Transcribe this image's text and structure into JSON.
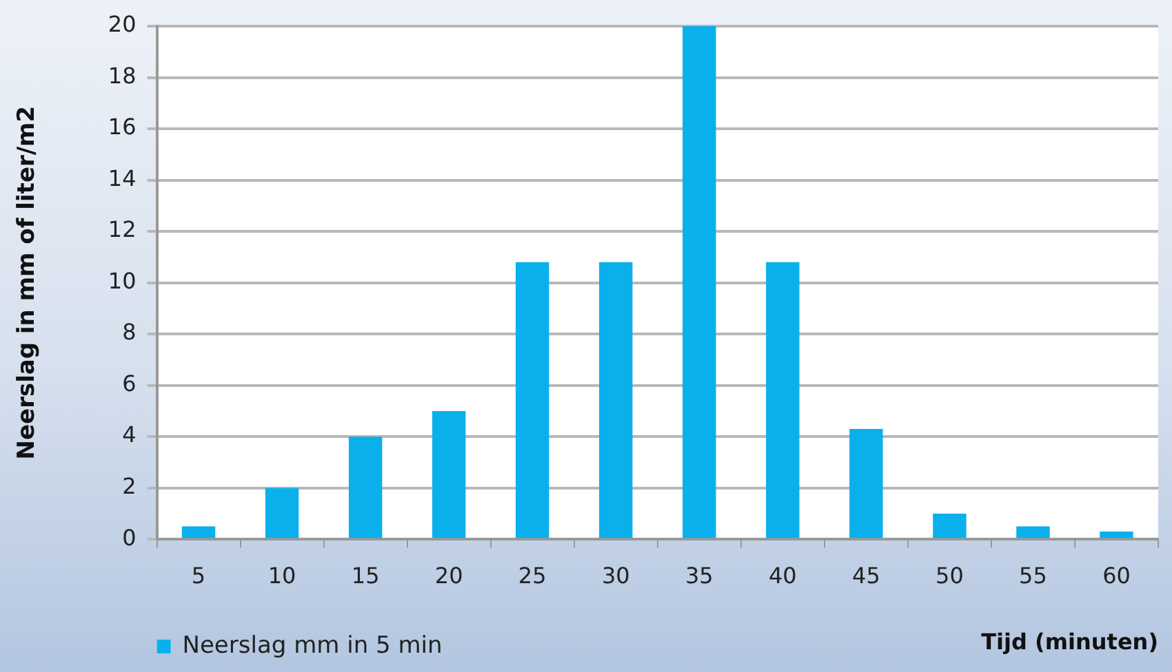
{
  "chart_data": {
    "type": "bar",
    "xlabel": "Tijd (minuten)",
    "ylabel": "Neerslag in mm of liter/m2",
    "categories": [
      "5",
      "10",
      "15",
      "20",
      "25",
      "30",
      "35",
      "40",
      "45",
      "50",
      "55",
      "60"
    ],
    "series": [
      {
        "name": "Neerslag mm in 5 min",
        "color": "#0ab0ec",
        "values": [
          0.5,
          2,
          4,
          5,
          10.8,
          10.8,
          20,
          10.8,
          4.3,
          1,
          0.5,
          0.3
        ]
      }
    ],
    "ylim": [
      0,
      20
    ],
    "yticks": [
      0,
      2,
      4,
      6,
      8,
      10,
      12,
      14,
      16,
      18,
      20
    ],
    "grid": "y",
    "legend": "bottom left"
  }
}
